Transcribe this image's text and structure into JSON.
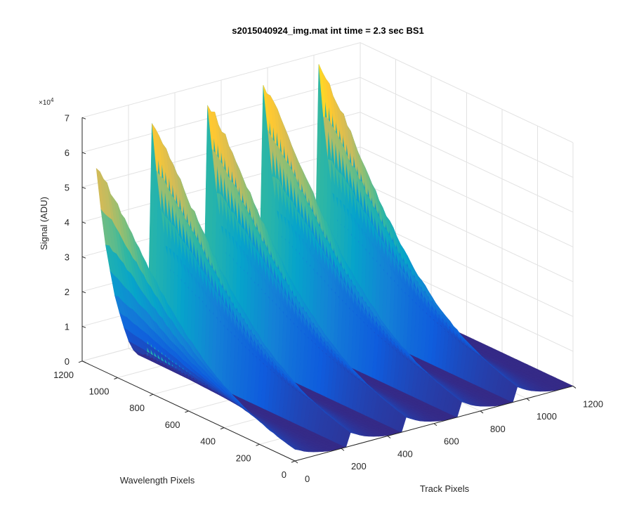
{
  "chart_data": {
    "type": "surface3d",
    "title": "s2015040924_img.mat int time = 2.3 sec   BS1",
    "xlabel": "Track Pixels",
    "ylabel": "Wavelength Pixels",
    "zlabel": "Signal (ADU)",
    "z_exponent_label": "×10",
    "z_exponent_value": "4",
    "xlim": [
      0,
      1200
    ],
    "ylim": [
      0,
      1200
    ],
    "zlim": [
      0,
      70000
    ],
    "x_ticks": [
      "0",
      "200",
      "400",
      "600",
      "800",
      "1000",
      "1200"
    ],
    "y_ticks": [
      "0",
      "200",
      "400",
      "600",
      "800",
      "1000",
      "1200"
    ],
    "z_ticks": [
      "0",
      "1",
      "2",
      "3",
      "4",
      "5",
      "6",
      "7"
    ],
    "grid": true,
    "colormap": "parula",
    "colormap_colors": [
      "#352a87",
      "#0f5cdd",
      "#1481d6",
      "#06a4ca",
      "#2eb7a4",
      "#87bf77",
      "#d1bb59",
      "#fec832",
      "#f9fb0e"
    ],
    "series": [
      {
        "track_center": 0,
        "peak_signal": 57000
      },
      {
        "track_center": 240,
        "peak_signal": 65000
      },
      {
        "track_center": 480,
        "peak_signal": 67000
      },
      {
        "track_center": 720,
        "peak_signal": 68000
      },
      {
        "track_center": 960,
        "peak_signal": 69000
      }
    ],
    "wavelength_extent": [
      0,
      1120
    ],
    "track_extent": [
      0,
      1200
    ]
  }
}
